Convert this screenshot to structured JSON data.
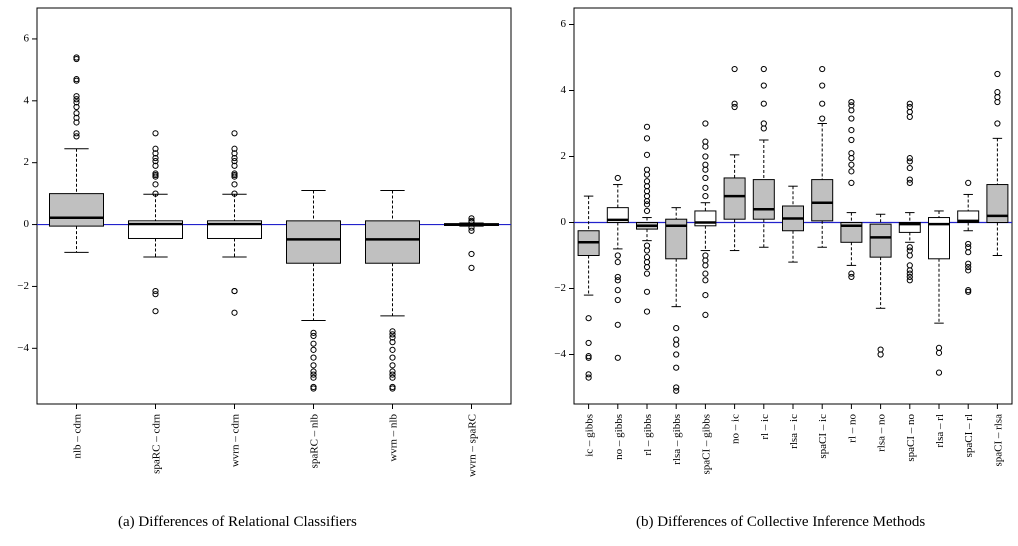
{
  "chart_data": [
    {
      "type": "box",
      "caption": "(a) Differences of Relational Classifiers",
      "xlabel": "",
      "ylabel": "",
      "ylim": [
        -5.8,
        7.0
      ],
      "yticks": [
        -4,
        -2,
        0,
        2,
        4,
        6
      ],
      "reference_line": 0,
      "categories": [
        "nlb – cdrn",
        "spaRC – cdrn",
        "wvrn – cdrn",
        "spaRC – nlb",
        "wvrn – nlb",
        "wvrn – spaRC"
      ],
      "boxes": [
        {
          "category": "nlb – cdrn",
          "min": -0.9,
          "q1": -0.05,
          "median": 0.22,
          "q3": 1.0,
          "max": 2.45,
          "fill": "#c0c0c0",
          "outliers": [
            2.85,
            2.95,
            3.3,
            3.45,
            3.6,
            3.8,
            3.95,
            4.05,
            4.15,
            4.65,
            4.7,
            5.35,
            5.4
          ]
        },
        {
          "category": "spaRC – cdrn",
          "min": -1.05,
          "q1": -0.45,
          "median": 0.02,
          "q3": 0.12,
          "max": 0.98,
          "fill": "#ffffff",
          "outliers": [
            1.0,
            1.3,
            1.55,
            1.6,
            1.65,
            1.9,
            2.05,
            2.15,
            2.3,
            2.45,
            2.95,
            -2.15,
            -2.25,
            -2.8
          ]
        },
        {
          "category": "wvrn – cdrn",
          "min": -1.05,
          "q1": -0.45,
          "median": 0.02,
          "q3": 0.12,
          "max": 0.98,
          "fill": "#ffffff",
          "outliers": [
            1.0,
            1.3,
            1.55,
            1.6,
            1.65,
            1.9,
            2.05,
            2.15,
            2.3,
            2.45,
            2.95,
            -2.15,
            -2.15,
            -2.85
          ]
        },
        {
          "category": "spaRC – nlb",
          "min": -3.1,
          "q1": -1.25,
          "median": -0.48,
          "q3": 0.12,
          "max": 1.1,
          "fill": "#c0c0c0",
          "outliers": [
            -3.5,
            -3.6,
            -3.85,
            -4.05,
            -4.3,
            -4.55,
            -4.75,
            -4.85,
            -4.95,
            -5.25,
            -5.3
          ]
        },
        {
          "category": "wvrn – nlb",
          "min": -2.95,
          "q1": -1.25,
          "median": -0.48,
          "q3": 0.12,
          "max": 1.1,
          "fill": "#c0c0c0",
          "outliers": [
            -3.45,
            -3.55,
            -3.65,
            -3.8,
            -4.05,
            -4.3,
            -4.55,
            -4.75,
            -4.85,
            -4.95,
            -5.25,
            -5.3
          ]
        },
        {
          "category": "wvrn – spaRC",
          "min": -0.05,
          "q1": -0.03,
          "median": 0.0,
          "q3": 0.03,
          "max": 0.05,
          "fill": "#c0c0c0",
          "outliers": [
            0.2,
            0.12,
            0.08,
            -0.1,
            -0.2,
            -0.95,
            -1.4
          ]
        }
      ]
    },
    {
      "type": "box",
      "caption": "(b) Differences of Collective Inference Methods",
      "xlabel": "",
      "ylabel": "",
      "ylim": [
        -5.5,
        6.5
      ],
      "yticks": [
        -4,
        -2,
        0,
        2,
        4,
        6
      ],
      "reference_line": 0,
      "categories": [
        "ic – gibbs",
        "no – gibbs",
        "rl – gibbs",
        "rlsa – gibbs",
        "spaCI – gibbs",
        "no – ic",
        "rl – ic",
        "rlsa – ic",
        "spaCI – ic",
        "rl – no",
        "rlsa – no",
        "spaCI – no",
        "rlsa – rl",
        "spaCI – rl",
        "spaCI – rlsa"
      ],
      "boxes": [
        {
          "category": "ic – gibbs",
          "min": -2.2,
          "q1": -1.0,
          "median": -0.6,
          "q3": -0.25,
          "max": 0.8,
          "fill": "#c0c0c0",
          "outliers": [
            -2.9,
            -3.65,
            -4.05,
            -4.1,
            -4.6,
            -4.7
          ]
        },
        {
          "category": "no – gibbs",
          "min": -0.8,
          "q1": 0.0,
          "median": 0.08,
          "q3": 0.45,
          "max": 1.15,
          "fill": "#ffffff",
          "outliers": [
            1.35,
            -1.0,
            -1.2,
            -1.65,
            -1.75,
            -2.05,
            -2.35,
            -3.1,
            -4.1
          ]
        },
        {
          "category": "rl – gibbs",
          "min": -0.55,
          "q1": -0.2,
          "median": -0.1,
          "q3": 0.0,
          "max": 0.15,
          "fill": "#c0c0c0",
          "outliers": [
            0.35,
            0.55,
            0.65,
            0.8,
            0.95,
            1.1,
            1.25,
            1.45,
            1.6,
            2.05,
            2.55,
            2.9,
            -0.7,
            -0.85,
            -1.05,
            -1.2,
            -1.35,
            -1.55,
            -2.1,
            -2.7
          ]
        },
        {
          "category": "rlsa – gibbs",
          "min": -2.55,
          "q1": -1.1,
          "median": -0.1,
          "q3": 0.1,
          "max": 0.45,
          "fill": "#c0c0c0",
          "outliers": [
            -3.2,
            -3.55,
            -3.7,
            -4.0,
            -4.4,
            -5.0,
            -5.1
          ]
        },
        {
          "category": "spaCI – gibbs",
          "min": -0.85,
          "q1": -0.1,
          "median": 0.0,
          "q3": 0.35,
          "max": 0.6,
          "fill": "#ffffff",
          "outliers": [
            0.8,
            1.05,
            1.35,
            1.6,
            1.75,
            2.0,
            2.3,
            2.45,
            3.0,
            -1.0,
            -1.15,
            -1.3,
            -1.55,
            -1.75,
            -2.2,
            -2.8
          ]
        },
        {
          "category": "no – ic",
          "min": -0.85,
          "q1": 0.1,
          "median": 0.8,
          "q3": 1.35,
          "max": 2.05,
          "fill": "#c0c0c0",
          "outliers": [
            3.5,
            3.6,
            4.65
          ]
        },
        {
          "category": "rl – ic",
          "min": -0.75,
          "q1": 0.1,
          "median": 0.4,
          "q3": 1.3,
          "max": 2.5,
          "fill": "#c0c0c0",
          "outliers": [
            2.85,
            3.0,
            3.6,
            4.15,
            4.65
          ]
        },
        {
          "category": "rlsa – ic",
          "min": -1.2,
          "q1": -0.25,
          "median": 0.12,
          "q3": 0.5,
          "max": 1.1,
          "fill": "#c0c0c0",
          "outliers": []
        },
        {
          "category": "spaCI – ic",
          "min": -0.75,
          "q1": 0.05,
          "median": 0.6,
          "q3": 1.3,
          "max": 3.0,
          "fill": "#c0c0c0",
          "outliers": [
            3.15,
            3.6,
            4.15,
            4.65
          ]
        },
        {
          "category": "rl – no",
          "min": -1.3,
          "q1": -0.6,
          "median": -0.1,
          "q3": 0.0,
          "max": 0.3,
          "fill": "#c0c0c0",
          "outliers": [
            1.2,
            1.55,
            1.75,
            1.95,
            2.1,
            2.5,
            2.8,
            3.15,
            3.4,
            3.55,
            3.65,
            -1.55,
            -1.65
          ]
        },
        {
          "category": "rlsa – no",
          "min": -2.6,
          "q1": -1.05,
          "median": -0.45,
          "q3": -0.05,
          "max": 0.25,
          "fill": "#c0c0c0",
          "outliers": [
            -3.85,
            -4.0
          ]
        },
        {
          "category": "spaCI – no",
          "min": -0.6,
          "q1": -0.3,
          "median": -0.05,
          "q3": 0.0,
          "max": 0.3,
          "fill": "#ffffff",
          "outliers": [
            1.2,
            1.3,
            1.65,
            1.85,
            1.95,
            3.2,
            3.35,
            3.5,
            3.6,
            -0.75,
            -0.85,
            -1.0,
            -1.3,
            -1.45,
            -1.55,
            -1.65,
            -1.75
          ]
        },
        {
          "category": "rlsa – rl",
          "min": -3.05,
          "q1": -1.1,
          "median": -0.05,
          "q3": 0.15,
          "max": 0.35,
          "fill": "#ffffff",
          "outliers": [
            -3.8,
            -3.95,
            -4.55
          ]
        },
        {
          "category": "spaCI – rl",
          "min": -0.25,
          "q1": 0.0,
          "median": 0.05,
          "q3": 0.35,
          "max": 0.85,
          "fill": "#ffffff",
          "outliers": [
            1.2,
            -0.65,
            -0.75,
            -0.9,
            -1.25,
            -1.35,
            -1.45,
            -2.05,
            -2.1
          ]
        },
        {
          "category": "spaCI – rlsa",
          "min": -1.0,
          "q1": 0.0,
          "median": 0.2,
          "q3": 1.15,
          "max": 2.55,
          "fill": "#c0c0c0",
          "outliers": [
            3.0,
            3.65,
            3.8,
            3.95,
            4.5
          ]
        }
      ]
    }
  ],
  "colors": {
    "box_fill_gray": "#c0c0c0",
    "reference_line": "#2222cc",
    "axis": "#000000"
  }
}
